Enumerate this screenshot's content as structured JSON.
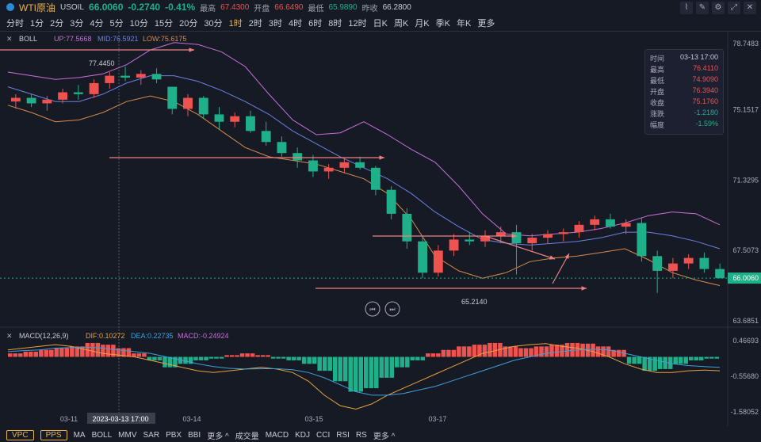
{
  "header": {
    "title": "WTI原油",
    "symbol": "USOIL",
    "price": "66.0060",
    "change": "-0.2740",
    "change_pct": "-0.41%",
    "high_label": "最高",
    "high": "67.4300",
    "open_label": "开盘",
    "open": "66.6490",
    "low_label": "最低",
    "low": "65.9890",
    "prev_label": "昨收",
    "prev": "66.2800"
  },
  "timeframes": [
    "分时",
    "1分",
    "2分",
    "3分",
    "4分",
    "5分",
    "10分",
    "15分",
    "20分",
    "30分",
    "1时",
    "2时",
    "3时",
    "4时",
    "6时",
    "8时",
    "12时",
    "日K",
    "周K",
    "月K",
    "季K",
    "年K",
    "更多"
  ],
  "active_timeframe": "1时",
  "boll": {
    "name": "BOLL",
    "up": "UP:77.5668",
    "mid": "MID:76.5921",
    "low": "LOW:75.6175"
  },
  "macd": {
    "name": "MACD(12,26,9)",
    "dif": "DIF:0.10272",
    "dea": "DEA:0.22735",
    "macd": "MACD:-0.24924"
  },
  "price_axis": [
    "78.7483",
    "75.1517",
    "71.3295",
    "67.5073",
    "63.6851"
  ],
  "current_price_tag": "66.0060",
  "macd_axis": [
    "0.46693",
    "-0.55680",
    "-1.58052"
  ],
  "annotations": {
    "hi": "77.4450",
    "lo": "65.2140"
  },
  "dates": [
    "03-11",
    "2023-03-13 17:00",
    "03-14",
    "03-15",
    "03-17"
  ],
  "infobox": {
    "rows": [
      {
        "k": "时间",
        "v": "03-13 17:00"
      },
      {
        "k": "最高",
        "v": "76.4110"
      },
      {
        "k": "最低",
        "v": "74.9090"
      },
      {
        "k": "开盘",
        "v": "76.3940"
      },
      {
        "k": "收盘",
        "v": "75.1760"
      },
      {
        "k": "涨跌",
        "v": "-1.2180"
      },
      {
        "k": "幅度",
        "v": "-1.59%"
      }
    ]
  },
  "bottom": {
    "vpc": "VPC",
    "pps": "PPS",
    "items": [
      "MA",
      "BOLL",
      "MMV",
      "SAR",
      "PBX",
      "BBI",
      "更多 ^",
      "成交量",
      "MACD",
      "KDJ",
      "CCI",
      "RSI",
      "RS",
      "更多 ^"
    ]
  },
  "colors": {
    "up": "#ef5350",
    "down": "#1fb08a",
    "mid": "#6f7fe0",
    "upper": "#c86fd8",
    "lower": "#d98a4a",
    "dif": "#e9a13b",
    "dea": "#3fa0d8"
  },
  "chart_data": {
    "type": "candlestick",
    "price_range": [
      63.6851,
      78.7483
    ],
    "boll_upper": [
      77.2,
      77.0,
      76.8,
      76.9,
      77.1,
      77.6,
      78.4,
      78.8,
      78.7,
      78.3,
      77.5,
      76.0,
      74.6,
      73.8,
      73.9,
      74.5,
      73.8,
      73.0,
      72.3,
      71.0,
      69.5,
      68.4,
      68.3,
      68.4,
      68.5,
      68.7,
      69.0,
      69.4,
      69.6,
      69.5,
      68.9
    ],
    "boll_mid": [
      76.4,
      76.0,
      75.6,
      75.6,
      76.0,
      76.6,
      77.0,
      77.0,
      76.7,
      76.2,
      75.6,
      74.9,
      74.0,
      73.3,
      72.6,
      72.0,
      71.4,
      70.6,
      69.6,
      68.8,
      68.1,
      67.9,
      67.8,
      67.9,
      68.0,
      68.2,
      68.5,
      68.5,
      68.3,
      68.0,
      67.6
    ],
    "boll_lower": [
      75.4,
      75.0,
      74.5,
      74.6,
      75.0,
      75.6,
      75.9,
      75.6,
      74.9,
      74.0,
      73.1,
      72.6,
      72.4,
      72.2,
      71.8,
      71.4,
      70.6,
      69.2,
      67.2,
      66.4,
      66.0,
      66.3,
      66.9,
      67.1,
      67.2,
      67.4,
      67.6,
      67.0,
      66.3,
      65.9,
      65.6
    ],
    "candles": [
      [
        75.6,
        76.0,
        75.2,
        75.8
      ],
      [
        75.8,
        76.0,
        75.3,
        75.5
      ],
      [
        75.5,
        75.9,
        75.1,
        75.7
      ],
      [
        75.7,
        76.3,
        75.5,
        76.1
      ],
      [
        76.1,
        76.5,
        75.7,
        76.0
      ],
      [
        76.0,
        76.8,
        75.8,
        76.6
      ],
      [
        76.6,
        77.2,
        76.3,
        77.0
      ],
      [
        77.0,
        77.5,
        76.7,
        76.9
      ],
      [
        76.9,
        77.3,
        76.5,
        77.1
      ],
      [
        77.1,
        77.4,
        76.6,
        76.8
      ],
      [
        76.4,
        76.4,
        74.9,
        75.2
      ],
      [
        75.2,
        76.0,
        74.8,
        75.8
      ],
      [
        75.8,
        75.9,
        74.7,
        74.9
      ],
      [
        74.9,
        75.3,
        74.1,
        74.5
      ],
      [
        74.5,
        75.0,
        74.2,
        74.8
      ],
      [
        74.8,
        75.1,
        73.9,
        74.0
      ],
      [
        74.0,
        74.5,
        73.2,
        73.4
      ],
      [
        73.4,
        73.7,
        72.6,
        72.8
      ],
      [
        72.8,
        73.1,
        72.0,
        72.4
      ],
      [
        72.4,
        72.7,
        71.5,
        71.8
      ],
      [
        71.8,
        72.2,
        71.4,
        72.0
      ],
      [
        72.0,
        72.5,
        71.7,
        72.3
      ],
      [
        72.3,
        72.6,
        71.9,
        72.0
      ],
      [
        72.0,
        72.1,
        70.5,
        70.8
      ],
      [
        70.8,
        71.0,
        69.2,
        69.5
      ],
      [
        69.5,
        69.8,
        67.6,
        68.0
      ],
      [
        68.0,
        68.3,
        66.0,
        66.3
      ],
      [
        66.3,
        67.8,
        66.1,
        67.5
      ],
      [
        67.5,
        68.4,
        67.2,
        68.1
      ],
      [
        68.1,
        68.5,
        67.8,
        68.0
      ],
      [
        68.0,
        68.6,
        67.7,
        68.3
      ],
      [
        68.3,
        68.8,
        67.9,
        68.5
      ],
      [
        68.5,
        68.9,
        66.2,
        67.9
      ],
      [
        67.9,
        68.4,
        67.5,
        68.2
      ],
      [
        68.2,
        68.6,
        67.9,
        68.4
      ],
      [
        68.4,
        68.7,
        68.0,
        68.5
      ],
      [
        68.5,
        69.1,
        68.2,
        68.9
      ],
      [
        68.9,
        69.4,
        68.6,
        69.2
      ],
      [
        69.2,
        69.5,
        68.7,
        68.8
      ],
      [
        68.8,
        69.2,
        68.4,
        69.0
      ],
      [
        69.0,
        69.3,
        66.9,
        67.2
      ],
      [
        67.2,
        67.5,
        65.2,
        66.4
      ],
      [
        66.4,
        67.1,
        66.0,
        66.8
      ],
      [
        66.8,
        67.3,
        66.5,
        67.1
      ],
      [
        67.1,
        67.4,
        66.3,
        66.5
      ],
      [
        66.5,
        66.8,
        65.99,
        66.0
      ]
    ],
    "macd_hist": [
      0.1,
      0.15,
      0.2,
      0.25,
      0.3,
      0.4,
      0.35,
      0.25,
      0.1,
      -0.1,
      -0.3,
      -0.2,
      -0.1,
      -0.05,
      0.05,
      0.1,
      0.05,
      -0.05,
      -0.1,
      -0.2,
      -0.4,
      -0.7,
      -1.0,
      -0.9,
      -0.6,
      -0.3,
      -0.1,
      0.1,
      0.2,
      0.3,
      0.35,
      0.4,
      0.3,
      0.25,
      0.3,
      0.35,
      0.4,
      0.38,
      0.3,
      0.2,
      -0.2,
      -0.4,
      -0.35,
      -0.2,
      -0.1,
      -0.05
    ],
    "macd_dif": [
      0.2,
      0.25,
      0.3,
      0.35,
      0.3,
      0.2,
      0.1,
      0.05,
      0.0,
      -0.1,
      -0.2,
      -0.3,
      -0.4,
      -0.45,
      -0.4,
      -0.35,
      -0.3,
      -0.35,
      -0.45,
      -0.7,
      -1.1,
      -1.4,
      -1.5,
      -1.35,
      -1.1,
      -0.9,
      -0.7,
      -0.5,
      -0.3,
      -0.1,
      0.1,
      0.2,
      0.3,
      0.35,
      0.38,
      0.3,
      0.25,
      0.15,
      0.0,
      -0.2,
      -0.35,
      -0.45,
      -0.45,
      -0.4,
      -0.38,
      -0.4
    ],
    "macd_dea": [
      0.15,
      0.18,
      0.2,
      0.25,
      0.27,
      0.28,
      0.25,
      0.2,
      0.15,
      0.1,
      0.0,
      -0.1,
      -0.2,
      -0.28,
      -0.33,
      -0.35,
      -0.34,
      -0.34,
      -0.37,
      -0.45,
      -0.6,
      -0.8,
      -1.0,
      -1.1,
      -1.1,
      -1.05,
      -0.95,
      -0.85,
      -0.7,
      -0.55,
      -0.4,
      -0.25,
      -0.1,
      0.0,
      0.1,
      0.15,
      0.2,
      0.22,
      0.2,
      0.1,
      0.0,
      -0.1,
      -0.2,
      -0.25,
      -0.28,
      -0.3
    ],
    "macd_range": [
      -1.58052,
      0.46693
    ]
  }
}
